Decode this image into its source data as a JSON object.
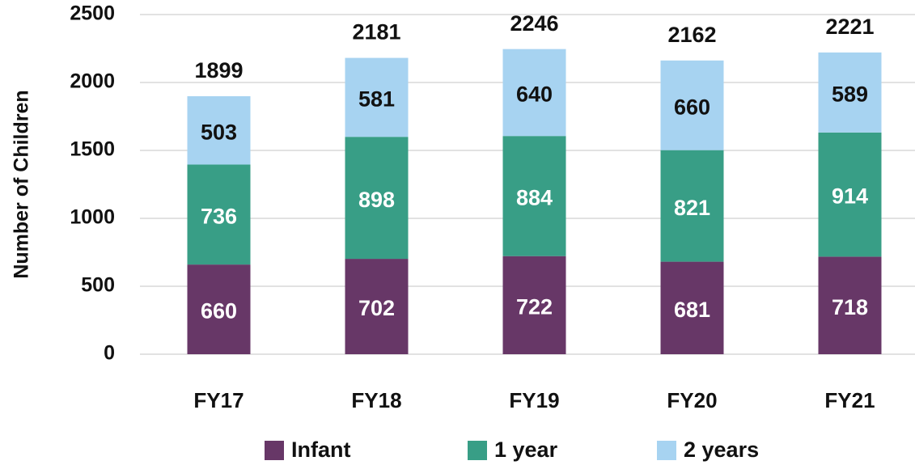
{
  "chart_data": {
    "type": "stacked_bar",
    "y_label": "Number of Children",
    "categories": [
      "FY17",
      "FY18",
      "FY19",
      "FY20",
      "FY21"
    ],
    "series": [
      {
        "name": "Infant",
        "color": "#673767",
        "values": [
          660,
          702,
          722,
          681,
          718
        ]
      },
      {
        "name": "1 year",
        "color": "#389e86",
        "values": [
          736,
          898,
          884,
          821,
          914
        ]
      },
      {
        "name": "2 years",
        "color": "#a7d3f1",
        "values": [
          503,
          581,
          640,
          660,
          589
        ]
      }
    ],
    "totals": [
      1899,
      2181,
      2246,
      2162,
      2221
    ],
    "ylim": [
      0,
      2500
    ],
    "yticks": [
      0,
      500,
      1000,
      1500,
      2000,
      2500
    ],
    "grid": true,
    "legend": "bottom"
  }
}
